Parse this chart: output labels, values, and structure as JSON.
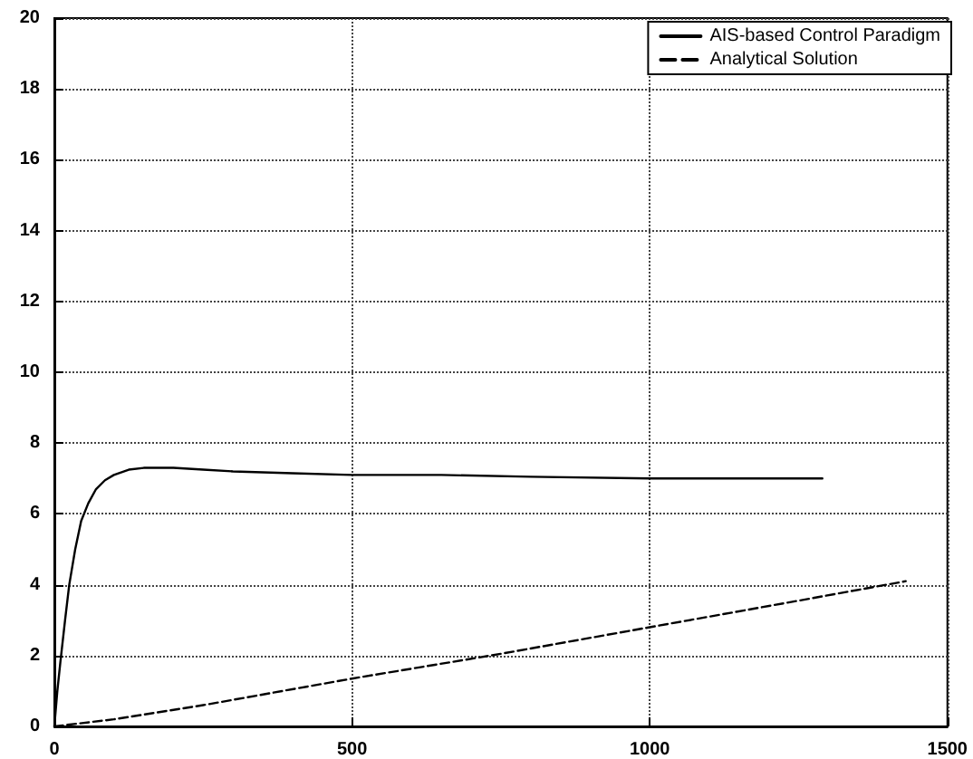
{
  "chart_data": {
    "type": "line",
    "xlim": [
      0,
      1500
    ],
    "xticks": [
      0,
      500,
      1000,
      1500
    ],
    "ylim": [
      0,
      20
    ],
    "yticks": [
      0,
      2,
      4,
      6,
      8,
      10,
      12,
      14,
      16,
      18,
      20
    ],
    "grid": true,
    "legend": "top right",
    "marker": "none",
    "series": [
      {
        "name": "AIS-based Control Paradigm",
        "color": "#000000",
        "line_style": "solid",
        "x": [
          0,
          5,
          10,
          18,
          25,
          35,
          45,
          57,
          70,
          85,
          100,
          125,
          150,
          200,
          250,
          300,
          400,
          500,
          650,
          800,
          1000,
          1150,
          1290
        ],
        "values": [
          0,
          1,
          1.8,
          3,
          4,
          5,
          5.8,
          6.3,
          6.7,
          6.95,
          7.1,
          7.25,
          7.3,
          7.3,
          7.25,
          7.2,
          7.15,
          7.1,
          7.1,
          7.05,
          7.0,
          7.0,
          7.0
        ]
      },
      {
        "name": "Analytical Solution",
        "color": "#000000",
        "line_style": "dashed",
        "x": [
          0,
          100,
          250,
          500,
          750,
          1000,
          1250,
          1430
        ],
        "values": [
          0,
          0.2,
          0.6,
          1.35,
          2.05,
          2.8,
          3.55,
          4.1
        ]
      }
    ]
  }
}
